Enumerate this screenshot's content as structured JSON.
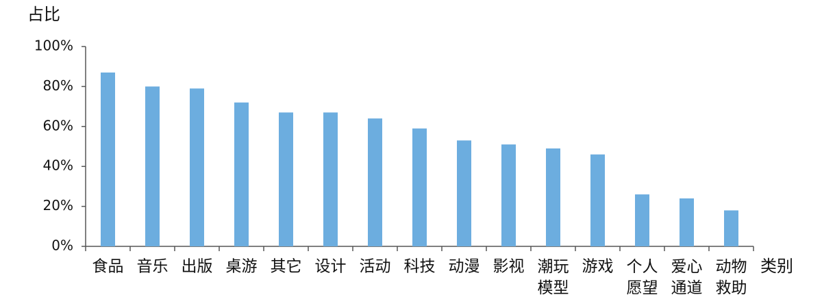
{
  "chart_data": {
    "type": "bar",
    "y_label": "占比",
    "x_label": "类别",
    "categories": [
      "食品",
      "音乐",
      "出版",
      "桌游",
      "其它",
      "设计",
      "活动",
      "科技",
      "动漫",
      "影视",
      "潮玩模型",
      "游戏",
      "个人愿望",
      "爱心通道",
      "动物救助"
    ],
    "values": [
      87,
      80,
      79,
      72,
      67,
      67,
      64,
      59,
      53,
      51,
      49,
      46,
      26,
      24,
      18
    ],
    "color": "#6caddf",
    "ylim": [
      0,
      100
    ],
    "yticks": [
      {
        "value": 0,
        "label": "0%"
      },
      {
        "value": 20,
        "label": "20%"
      },
      {
        "value": 40,
        "label": "40%"
      },
      {
        "value": 60,
        "label": "60%"
      },
      {
        "value": 80,
        "label": "80%"
      },
      {
        "value": 100,
        "label": "100%"
      }
    ],
    "grid": false
  }
}
